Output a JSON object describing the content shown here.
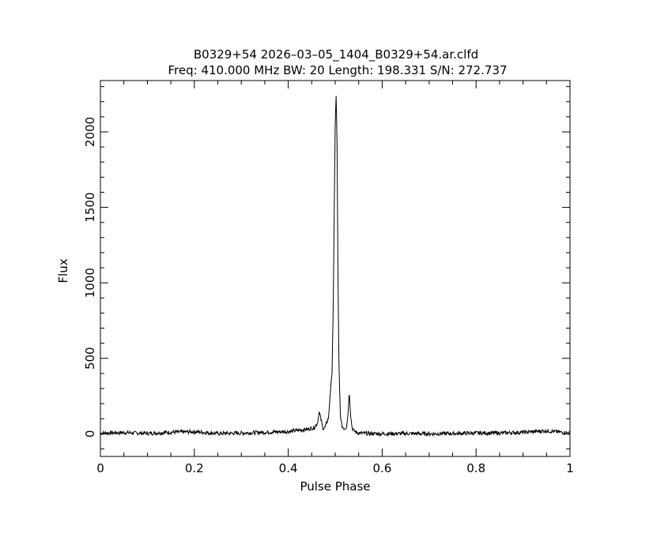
{
  "chart_data": {
    "type": "line",
    "title": "B0329+54 2026–03–05_1404_B0329+54.ar.clfd",
    "subtitle": "Freq: 410.000 MHz BW: 20 Length: 198.331 S/N: 272.737",
    "xlabel": "Pulse Phase",
    "ylabel": "Flux",
    "xlim": [
      0,
      1
    ],
    "ylim": [
      -150,
      2340
    ],
    "grid": false,
    "x_ticks": [
      "0",
      "0.2",
      "0.4",
      "0.6",
      "0.8",
      "1"
    ],
    "x_tick_values": [
      0,
      0.2,
      0.4,
      0.6,
      0.8,
      1
    ],
    "y_ticks": [
      "0",
      "500",
      "1000",
      "1500",
      "2000"
    ],
    "y_tick_values": [
      0,
      500,
      1000,
      1500,
      2000
    ],
    "series": [
      {
        "values": {
          "x": [
            0.0,
            0.05,
            0.1,
            0.15,
            0.2,
            0.25,
            0.3,
            0.35,
            0.4,
            0.44,
            0.455,
            0.462,
            0.466,
            0.47,
            0.474,
            0.478,
            0.482,
            0.486,
            0.49,
            0.493,
            0.496,
            0.498,
            0.5,
            0.502,
            0.504,
            0.506,
            0.508,
            0.511,
            0.514,
            0.517,
            0.52,
            0.524,
            0.527,
            0.53,
            0.533,
            0.536,
            0.54,
            0.545,
            0.55,
            0.56,
            0.6,
            0.65,
            0.7,
            0.75,
            0.8,
            0.85,
            0.9,
            0.95,
            1.0
          ],
          "y": [
            5,
            8,
            3,
            10,
            14,
            2,
            5,
            10,
            15,
            30,
            40,
            70,
            145,
            90,
            35,
            40,
            75,
            110,
            300,
            380,
            880,
            1500,
            2050,
            2240,
            1900,
            1000,
            450,
            120,
            55,
            40,
            35,
            45,
            120,
            280,
            120,
            40,
            20,
            10,
            5,
            3,
            0,
            2,
            0,
            2,
            5,
            5,
            10,
            20,
            4
          ]
        }
      }
    ]
  }
}
